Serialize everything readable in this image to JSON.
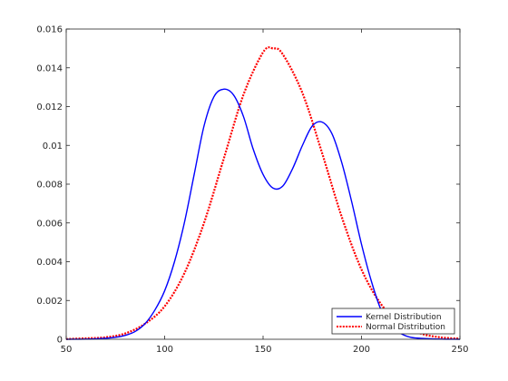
{
  "chart_data": {
    "type": "line",
    "title": "",
    "xlabel": "",
    "ylabel": "",
    "xlim": [
      50,
      250
    ],
    "ylim": [
      0,
      0.016
    ],
    "xticks": [
      50,
      100,
      150,
      200,
      250
    ],
    "xtick_labels": [
      "50",
      "100",
      "150",
      "200",
      "250"
    ],
    "yticks": [
      0,
      0.002,
      0.004,
      0.006,
      0.008,
      0.01,
      0.012,
      0.014,
      0.016
    ],
    "ytick_labels": [
      "0",
      "0.002",
      "0.004",
      "0.006",
      "0.008",
      "0.01",
      "0.012",
      "0.014",
      "0.016"
    ],
    "grid": false,
    "legend_position": "bottom-right",
    "series": [
      {
        "name": "Kernel Distribution",
        "color": "#0000ff",
        "style": "solid",
        "x": [
          50,
          60,
          70,
          75,
          80,
          85,
          90,
          95,
          100,
          105,
          110,
          115,
          120,
          125,
          130,
          135,
          140,
          145,
          150,
          155,
          160,
          165,
          170,
          175,
          180,
          185,
          190,
          195,
          200,
          205,
          210,
          215,
          220,
          225,
          230,
          240,
          250
        ],
        "y": [
          0,
          1e-05,
          5e-05,
          0.0001,
          0.0002,
          0.0004,
          0.0008,
          0.0015,
          0.0025,
          0.004,
          0.006,
          0.0085,
          0.011,
          0.0125,
          0.0129,
          0.0126,
          0.0115,
          0.0098,
          0.0085,
          0.0078,
          0.0079,
          0.0088,
          0.01,
          0.011,
          0.0112,
          0.0106,
          0.0091,
          0.0071,
          0.0049,
          0.003,
          0.0015,
          0.0007,
          0.0003,
          0.0001,
          5e-05,
          1e-05,
          0
        ]
      },
      {
        "name": "Normal Distribution",
        "color": "#ff0000",
        "style": "dotted",
        "x": [
          50,
          60,
          70,
          80,
          90,
          100,
          110,
          120,
          130,
          140,
          150,
          155,
          160,
          170,
          180,
          190,
          200,
          210,
          220,
          230,
          240,
          250
        ],
        "y": [
          1e-05,
          5e-05,
          0.0001,
          0.0003,
          0.0008,
          0.0017,
          0.0034,
          0.006,
          0.0093,
          0.0126,
          0.0148,
          0.015,
          0.0147,
          0.0127,
          0.0096,
          0.0063,
          0.0036,
          0.0018,
          0.0008,
          0.0003,
          0.0001,
          3e-05
        ]
      }
    ]
  }
}
